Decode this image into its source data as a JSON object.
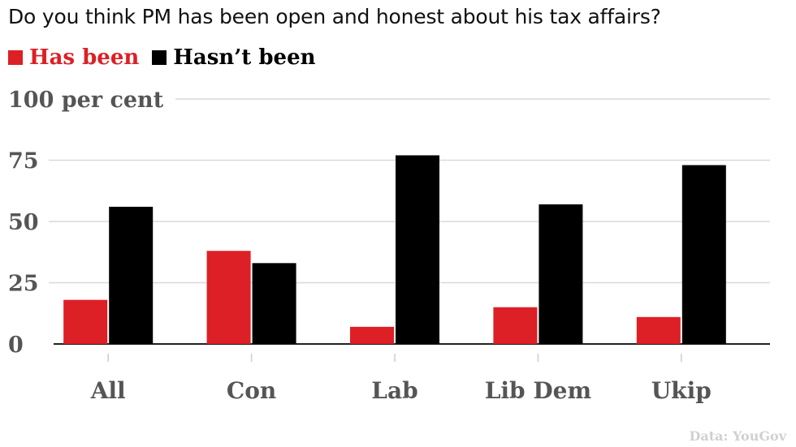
{
  "colors": {
    "has_been": "#dd1f26",
    "hasnt_been": "#000000",
    "axis_text": "#555555",
    "grid": "#d9d9d9"
  },
  "chart_data": {
    "type": "bar",
    "title": "Do you think PM has been open and honest about his tax affairs?",
    "categories": [
      "All",
      "Con",
      "Lab",
      "Lib Dem",
      "Ukip"
    ],
    "series": [
      {
        "name": "Has been",
        "values": [
          18,
          38,
          7,
          15,
          11
        ]
      },
      {
        "name": "Hasn’t been",
        "values": [
          56,
          33,
          77,
          57,
          73
        ]
      }
    ],
    "ylim": [
      0,
      100
    ],
    "yticks": [
      0,
      25,
      50,
      75,
      100
    ],
    "ytick_labels": [
      "0",
      "25",
      "50",
      "75",
      "100 per cent"
    ],
    "grid": true,
    "legend": "top-left",
    "source": "Data: YouGov"
  }
}
